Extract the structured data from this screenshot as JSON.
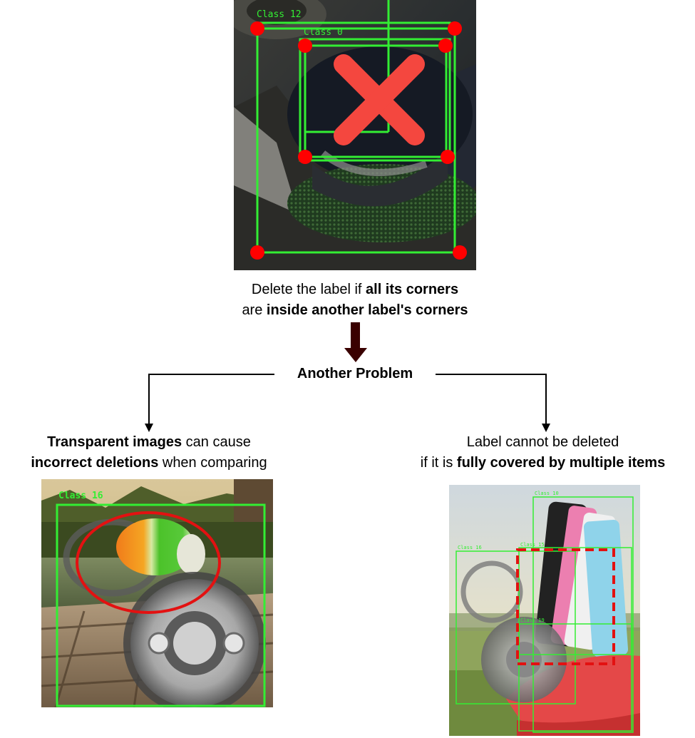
{
  "top_panel": {
    "labels": [
      "Class 12",
      "Class 0"
    ],
    "cross_icon": "x-mark"
  },
  "caption_top": {
    "line1_a": "Delete the label if ",
    "line1_b": "all its corners",
    "line2_a": "are ",
    "line2_b": "inside another label's corners"
  },
  "branch_label": "Another Problem",
  "left_caption": {
    "line1_b": "Transparent images",
    "line1_a": " can cause",
    "line2_b": "incorrect deletions",
    "line2_a": " when comparing"
  },
  "right_caption": {
    "line1": "Label cannot be deleted",
    "line2_a": "if it is ",
    "line2_b": "fully covered by multiple items"
  },
  "left_panel": {
    "labels": [
      "Class 16"
    ]
  },
  "right_panel": {
    "labels": [
      "Class 10",
      "Class 16",
      "Class 15",
      "Class 19"
    ]
  },
  "colors": {
    "box_green": "#33ee33",
    "corner_red": "#ff0000",
    "cross_red": "#f4473f",
    "arrow_dark": "#3a0000",
    "highlight_red": "#e31111"
  }
}
